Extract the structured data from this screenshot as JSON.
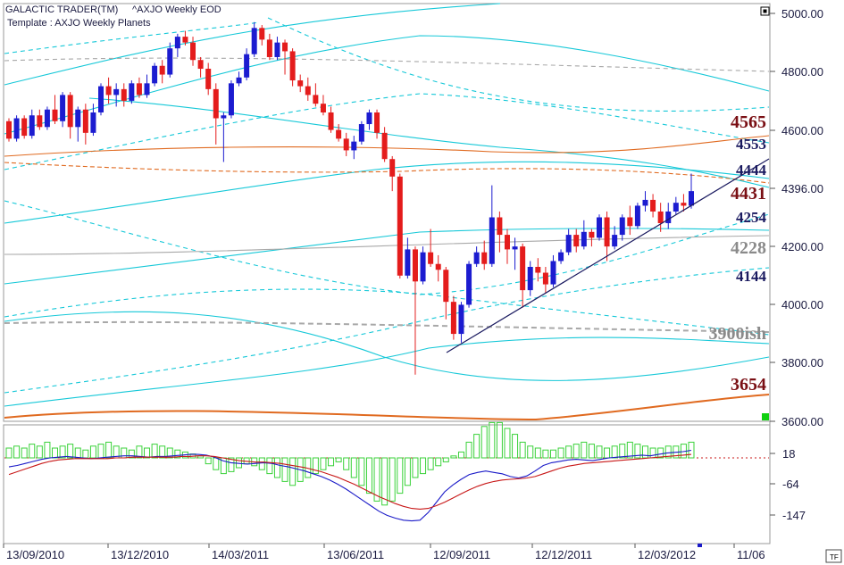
{
  "header": {
    "app_title": "GALACTIC TRADER(TM)",
    "symbol_title": "^AXJO Weekly EOD",
    "template_label": "Template : AXJO Weekly Planets"
  },
  "footer": {
    "corner_label": "TF"
  },
  "colors": {
    "bull": "#1c1cd0",
    "bear": "#e41c1c",
    "planet_cyan": "#16c8d8",
    "planet_orange": "#e06a20",
    "planet_grey": "#a8a8a8",
    "level_maroon": "#7a0f14",
    "level_navy": "#1a1a60",
    "level_grey": "#8a8a8a",
    "macd_blue": "#1a1ac8",
    "macd_red": "#c81818",
    "histogram_green": "#3ad23a",
    "marker_green": "#10d010"
  },
  "chart_data": [
    {
      "type": "candlestick",
      "title": "",
      "price_axis_ticks": [
        "5000.00",
        "4800.00",
        "4600.00",
        "4396.00",
        "4200.00",
        "4000.00",
        "3800.00",
        "3600.00"
      ],
      "ylim": [
        3600,
        5000
      ],
      "date_axis_ticks": [
        "13/09/2010",
        "13/12/2010",
        "14/03/2011",
        "13/06/2011",
        "12/09/2011",
        "12/12/2011",
        "12/03/2012",
        "11/06"
      ],
      "level_labels": [
        {
          "text": "4565",
          "price": 4565,
          "style": "maroon"
        },
        {
          "text": "4553",
          "price": 4553,
          "style": "navy"
        },
        {
          "text": "4444",
          "price": 4444,
          "style": "navy"
        },
        {
          "text": "4431",
          "price": 4431,
          "style": "maroon"
        },
        {
          "text": "4254",
          "price": 4254,
          "style": "navy"
        },
        {
          "text": "4228",
          "price": 4228,
          "style": "grey"
        },
        {
          "text": "4144",
          "price": 4144,
          "style": "navy"
        },
        {
          "text": "3900ish",
          "price": 3900,
          "style": "grey"
        },
        {
          "text": "3654",
          "price": 3654,
          "style": "maroon"
        }
      ],
      "candles": [
        [
          4630,
          4570,
          4640,
          4560
        ],
        [
          4570,
          4640,
          4650,
          4560
        ],
        [
          4640,
          4580,
          4650,
          4570
        ],
        [
          4580,
          4650,
          4670,
          4570
        ],
        [
          4650,
          4610,
          4670,
          4600
        ],
        [
          4610,
          4670,
          4680,
          4600
        ],
        [
          4670,
          4630,
          4720,
          4620
        ],
        [
          4630,
          4720,
          4730,
          4610
        ],
        [
          4720,
          4610,
          4730,
          4570
        ],
        [
          4610,
          4670,
          4680,
          4560
        ],
        [
          4670,
          4590,
          4690,
          4550
        ],
        [
          4590,
          4660,
          4690,
          4580
        ],
        [
          4660,
          4750,
          4760,
          4650
        ],
        [
          4750,
          4720,
          4780,
          4690
        ],
        [
          4720,
          4740,
          4760,
          4680
        ],
        [
          4740,
          4700,
          4760,
          4680
        ],
        [
          4700,
          4760,
          4770,
          4690
        ],
        [
          4760,
          4720,
          4780,
          4710
        ],
        [
          4720,
          4760,
          4790,
          4710
        ],
        [
          4760,
          4820,
          4830,
          4750
        ],
        [
          4820,
          4790,
          4840,
          4760
        ],
        [
          4790,
          4880,
          4900,
          4780
        ],
        [
          4880,
          4920,
          4930,
          4850
        ],
        [
          4920,
          4900,
          4940,
          4890
        ],
        [
          4900,
          4840,
          4920,
          4820
        ],
        [
          4840,
          4810,
          4850,
          4780
        ],
        [
          4810,
          4740,
          4830,
          4720
        ],
        [
          4740,
          4640,
          4760,
          4550
        ],
        [
          4640,
          4650,
          4660,
          4490
        ],
        [
          4650,
          4760,
          4770,
          4640
        ],
        [
          4760,
          4780,
          4800,
          4750
        ],
        [
          4780,
          4860,
          4880,
          4770
        ],
        [
          4860,
          4950,
          4970,
          4850
        ],
        [
          4950,
          4910,
          4960,
          4890
        ],
        [
          4910,
          4850,
          4930,
          4840
        ],
        [
          4850,
          4900,
          4920,
          4840
        ],
        [
          4900,
          4870,
          4910,
          4790
        ],
        [
          4870,
          4770,
          4880,
          4750
        ],
        [
          4770,
          4750,
          4790,
          4730
        ],
        [
          4750,
          4720,
          4780,
          4700
        ],
        [
          4720,
          4690,
          4760,
          4680
        ],
        [
          4690,
          4660,
          4720,
          4650
        ],
        [
          4660,
          4600,
          4680,
          4590
        ],
        [
          4600,
          4570,
          4620,
          4560
        ],
        [
          4570,
          4530,
          4590,
          4510
        ],
        [
          4530,
          4560,
          4580,
          4500
        ],
        [
          4560,
          4620,
          4630,
          4550
        ],
        [
          4620,
          4660,
          4670,
          4600
        ],
        [
          4660,
          4590,
          4670,
          4570
        ],
        [
          4590,
          4500,
          4610,
          4490
        ],
        [
          4500,
          4440,
          4510,
          4390
        ],
        [
          4440,
          4100,
          4450,
          4090
        ],
        [
          4100,
          4190,
          4230,
          4090
        ],
        [
          4190,
          4080,
          4200,
          3760
        ],
        [
          4080,
          4180,
          4200,
          4070
        ],
        [
          4180,
          4140,
          4260,
          4130
        ],
        [
          4140,
          4120,
          4170,
          4080
        ],
        [
          4120,
          4010,
          4130,
          3950
        ],
        [
          4010,
          3900,
          4030,
          3880
        ],
        [
          3900,
          4000,
          4010,
          3870
        ],
        [
          4000,
          4140,
          4150,
          3990
        ],
        [
          4140,
          4180,
          4200,
          4130
        ],
        [
          4180,
          4140,
          4220,
          4120
        ],
        [
          4140,
          4300,
          4410,
          4130
        ],
        [
          4300,
          4240,
          4320,
          4180
        ],
        [
          4240,
          4190,
          4260,
          4140
        ],
        [
          4190,
          4200,
          4230,
          4120
        ],
        [
          4200,
          4050,
          4210,
          3990
        ],
        [
          4050,
          4130,
          4150,
          4030
        ],
        [
          4130,
          4110,
          4160,
          4080
        ],
        [
          4110,
          4070,
          4130,
          4040
        ],
        [
          4070,
          4150,
          4170,
          4060
        ],
        [
          4150,
          4180,
          4190,
          4140
        ],
        [
          4180,
          4240,
          4260,
          4170
        ],
        [
          4240,
          4200,
          4260,
          4180
        ],
        [
          4200,
          4250,
          4290,
          4190
        ],
        [
          4250,
          4230,
          4260,
          4200
        ],
        [
          4230,
          4300,
          4310,
          4220
        ],
        [
          4300,
          4200,
          4320,
          4150
        ],
        [
          4200,
          4240,
          4270,
          4190
        ],
        [
          4240,
          4300,
          4310,
          4220
        ],
        [
          4300,
          4270,
          4340,
          4240
        ],
        [
          4270,
          4340,
          4350,
          4260
        ],
        [
          4340,
          4360,
          4390,
          4320
        ],
        [
          4360,
          4320,
          4380,
          4300
        ],
        [
          4320,
          4280,
          4350,
          4250
        ],
        [
          4280,
          4320,
          4350,
          4260
        ],
        [
          4320,
          4350,
          4370,
          4310
        ],
        [
          4350,
          4340,
          4380,
          4320
        ],
        [
          4340,
          4390,
          4450,
          4330
        ]
      ],
      "trendlines": [
        {
          "from": [
            500,
            395
          ],
          "to": [
            861,
            178
          ]
        }
      ]
    },
    {
      "type": "bar",
      "title": "",
      "ticks": [
        "18",
        "-64",
        "-147"
      ],
      "histogram": [
        5,
        6,
        5,
        7,
        6,
        8,
        5,
        6,
        7,
        5,
        4,
        6,
        7,
        8,
        6,
        5,
        4,
        6,
        5,
        7,
        6,
        5,
        4,
        3,
        2,
        1,
        -3,
        -6,
        -8,
        -7,
        -5,
        -3,
        -4,
        -6,
        -8,
        -10,
        -12,
        -14,
        -12,
        -10,
        -8,
        -6,
        -4,
        -2,
        -6,
        -10,
        -14,
        -18,
        -22,
        -24,
        -22,
        -18,
        -14,
        -10,
        -8,
        -6,
        -4,
        -2,
        1,
        3,
        8,
        12,
        16,
        18,
        18,
        15,
        12,
        8,
        6,
        5,
        4,
        4,
        5,
        6,
        7,
        8,
        7,
        6,
        5,
        6,
        7,
        8,
        7,
        6,
        5,
        5,
        6,
        6,
        7,
        8
      ],
      "lines": [
        {
          "color": "macd_blue",
          "values": [
            -8,
            -4,
            2,
            8,
            14,
            18,
            20,
            22,
            20,
            18,
            16,
            18,
            20,
            22,
            24,
            24,
            22,
            20,
            22,
            22,
            24,
            26,
            28,
            28,
            26,
            20,
            10,
            4,
            2,
            0,
            2,
            4,
            2,
            -4,
            -8,
            -14,
            -20,
            -28,
            -36,
            -46,
            -58,
            -72,
            -88,
            -104,
            -120,
            -136,
            -148,
            -156,
            -162,
            -164,
            -162,
            -140,
            -110,
            -80,
            -60,
            -44,
            -30,
            -24,
            -20,
            -24,
            -28,
            -36,
            -40,
            -34,
            -20,
            -4,
            4,
            8,
            12,
            14,
            12,
            10,
            14,
            18,
            20,
            22,
            24,
            26,
            24,
            28,
            32,
            34,
            36,
            40
          ]
        },
        {
          "color": "macd_red",
          "values": [
            -30,
            -22,
            -14,
            -6,
            2,
            8,
            12,
            14,
            16,
            16,
            16,
            16,
            16,
            18,
            18,
            20,
            20,
            20,
            20,
            20,
            20,
            22,
            22,
            24,
            24,
            22,
            18,
            14,
            10,
            8,
            6,
            6,
            4,
            2,
            -2,
            -6,
            -10,
            -16,
            -22,
            -30,
            -38,
            -48,
            -58,
            -70,
            -82,
            -94,
            -104,
            -114,
            -122,
            -128,
            -130,
            -128,
            -120,
            -110,
            -98,
            -86,
            -74,
            -64,
            -56,
            -50,
            -46,
            -44,
            -42,
            -40,
            -36,
            -28,
            -20,
            -12,
            -6,
            -2,
            2,
            4,
            6,
            8,
            10,
            12,
            14,
            16,
            18,
            20,
            22,
            24,
            26,
            28
          ]
        }
      ],
      "zero_line_value": 18
    }
  ]
}
